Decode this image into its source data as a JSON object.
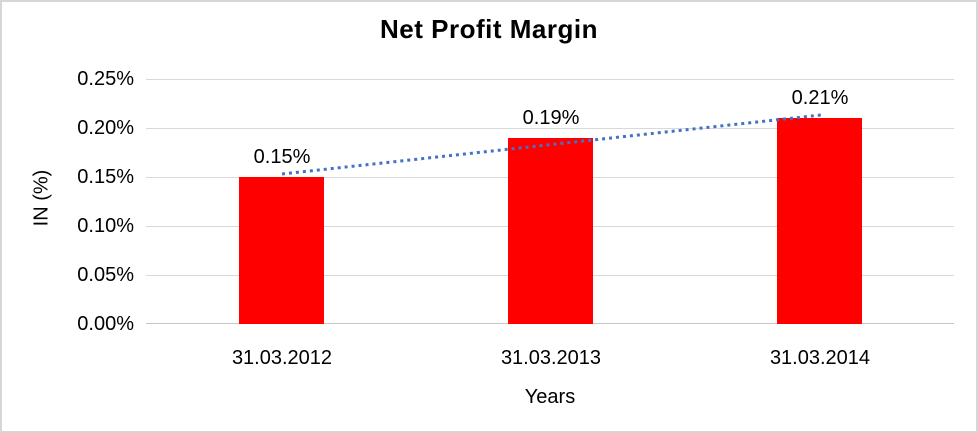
{
  "chart_data": {
    "type": "bar",
    "title": "Net Profit Margin",
    "xlabel": "Years",
    "ylabel": "IN (%)",
    "categories": [
      "31.03.2012",
      "31.03.2013",
      "31.03.2014"
    ],
    "values": [
      0.15,
      0.19,
      0.21
    ],
    "data_labels": [
      "0.15%",
      "0.19%",
      "0.21%"
    ],
    "yticks": [
      "0.25%",
      "0.20%",
      "0.15%",
      "0.10%",
      "0.05%",
      "0.00%"
    ],
    "ylim": [
      0,
      0.25
    ],
    "grid": true,
    "legend": "none",
    "bar_color": "#ff0000",
    "grid_color": "#d9d9d9",
    "trendline": {
      "type": "linear",
      "style": "dotted",
      "color": "#4472c4",
      "fitted_values": [
        0.1533,
        0.1833,
        0.2133
      ]
    }
  }
}
